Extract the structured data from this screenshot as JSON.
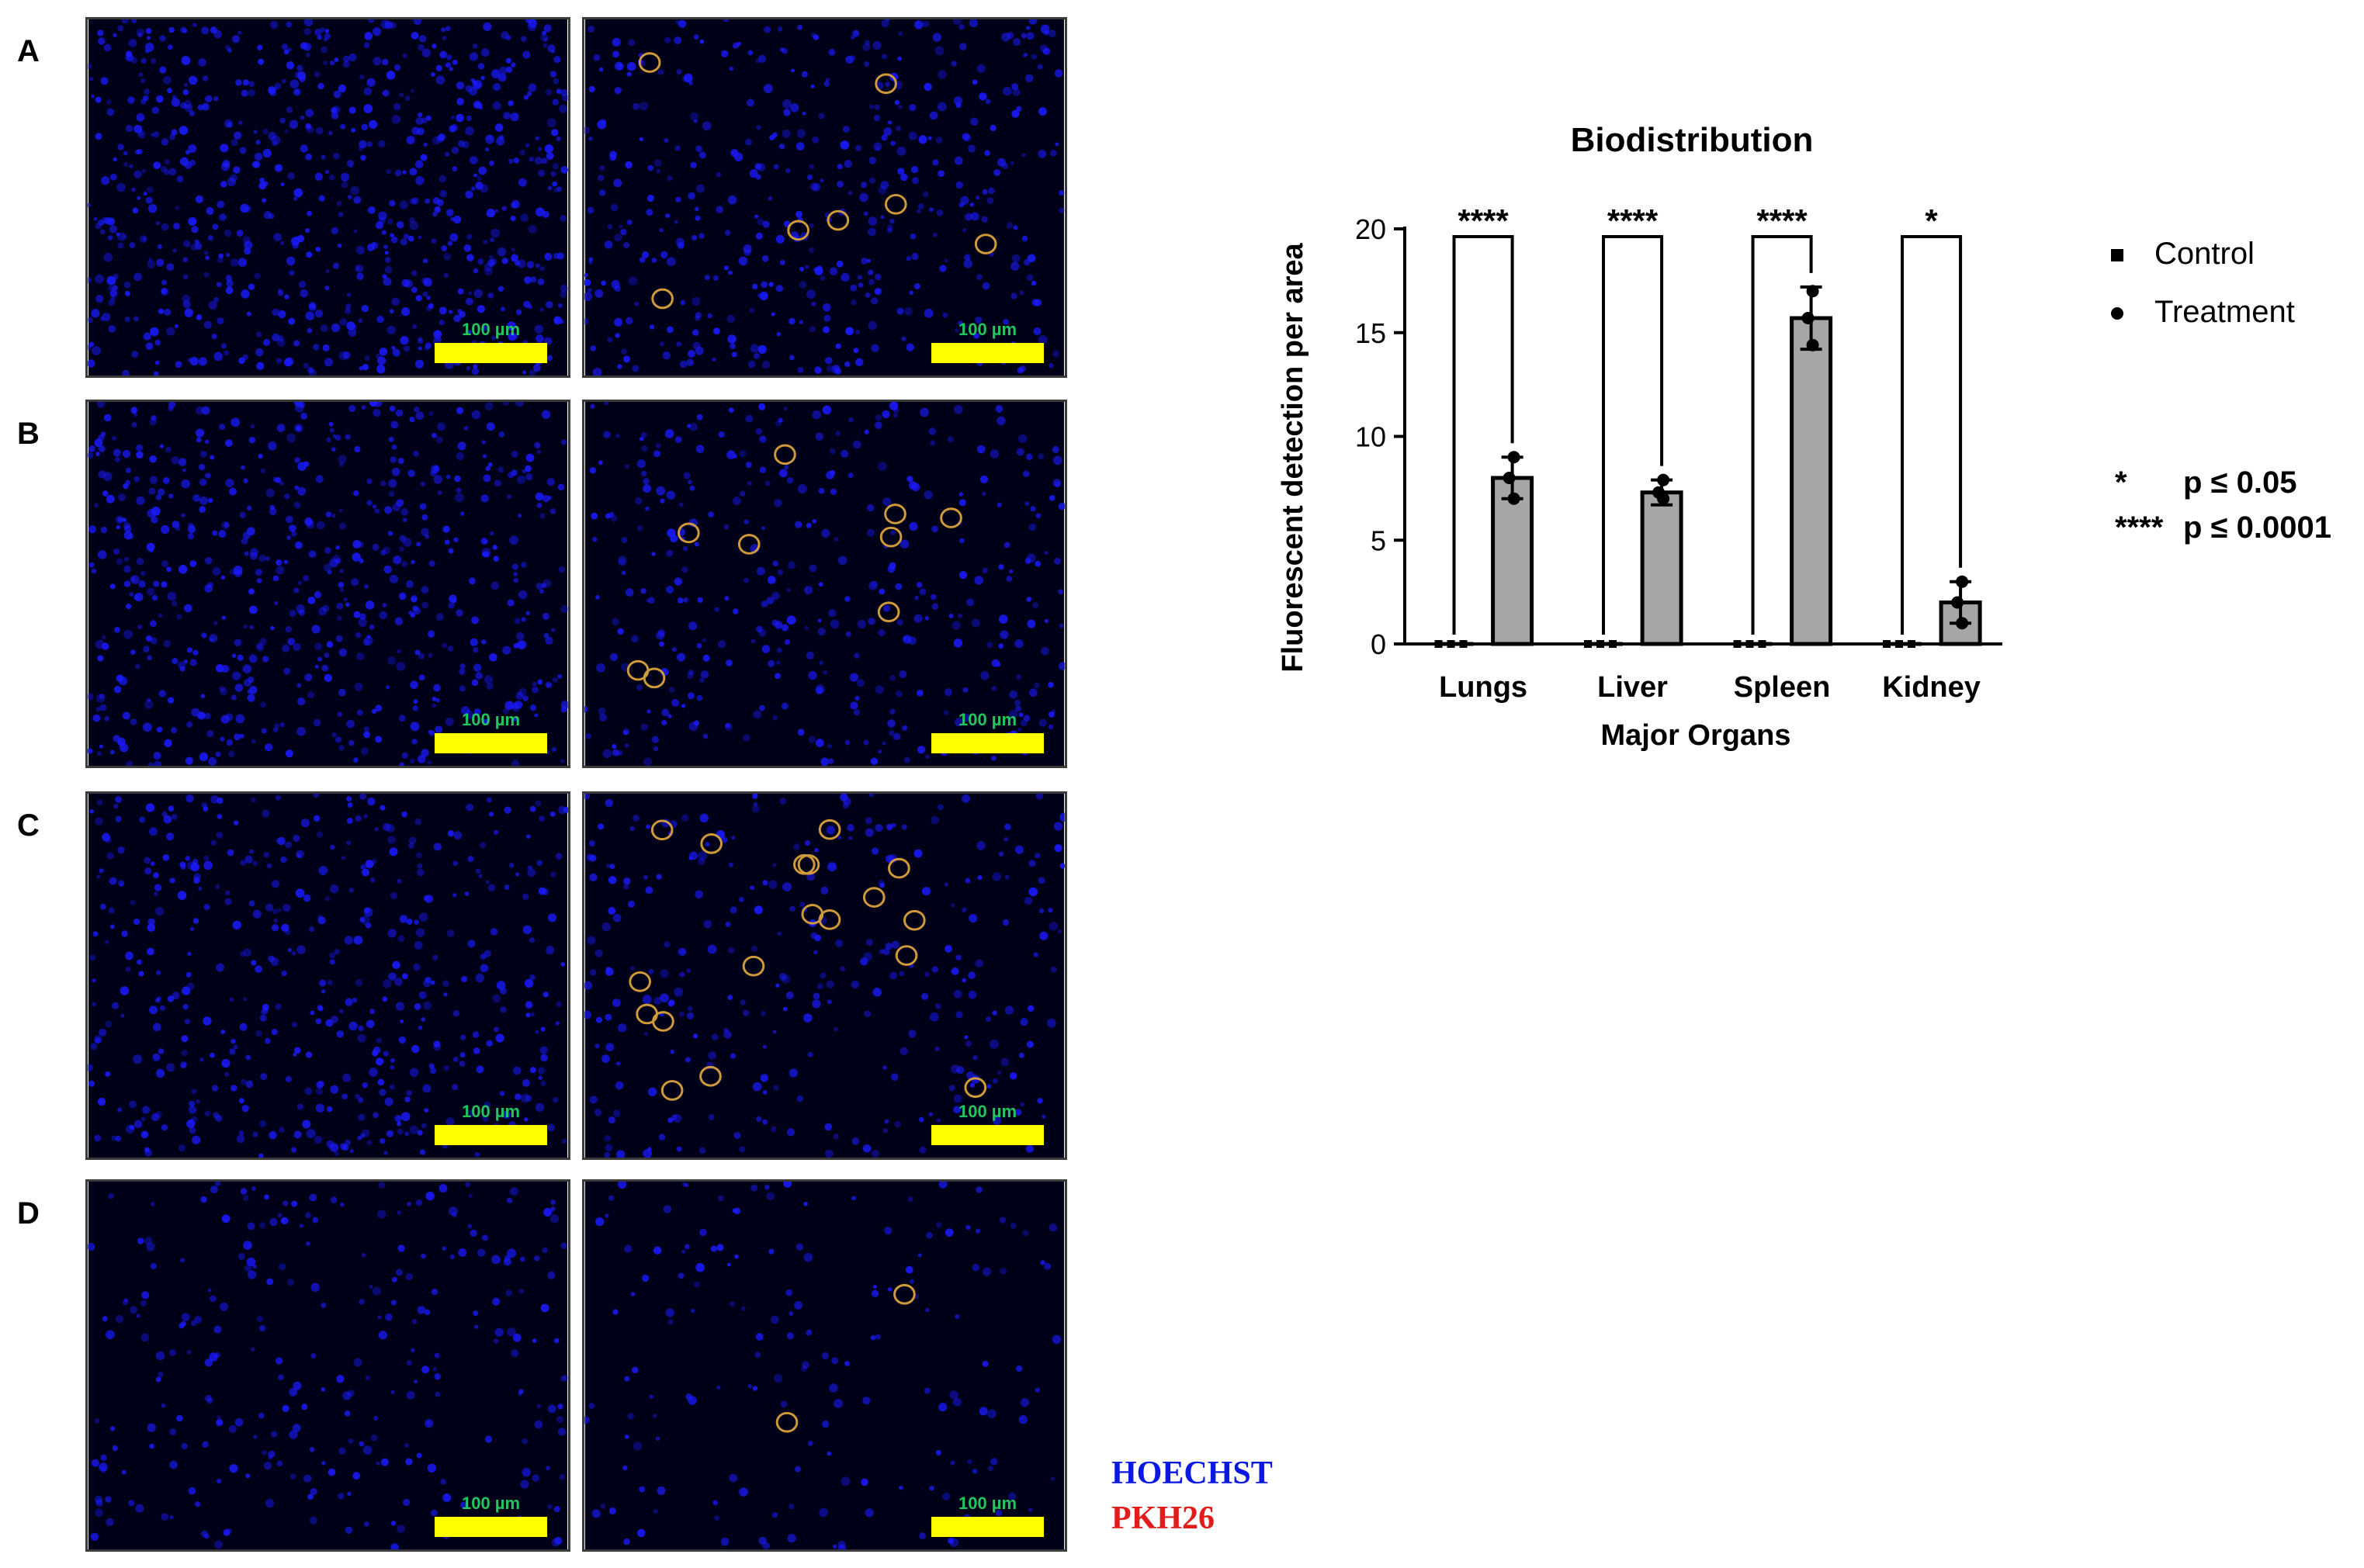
{
  "panels": {
    "rows": [
      {
        "label": "A",
        "scale_text": "100 µm",
        "control_density": 0.85,
        "treated_circles": 7
      },
      {
        "label": "B",
        "scale_text": "100 µm",
        "control_density": 0.7,
        "treated_circles": 9
      },
      {
        "label": "C",
        "scale_text": "100 µm",
        "control_density": 0.55,
        "treated_circles": 18
      },
      {
        "label": "D",
        "scale_text": "100 µm",
        "control_density": 0.3,
        "treated_circles": 2
      }
    ],
    "colors": {
      "nuclei": "#1a1aff",
      "background": "#000018",
      "circle": "#d09a3a"
    }
  },
  "stains": [
    {
      "name": "HOECHST",
      "color": "#0a18e0"
    },
    {
      "name": "PKH26",
      "color": "#e21b1b"
    }
  ],
  "legend": {
    "items": [
      {
        "label": "Control",
        "marker": "square"
      },
      {
        "label": "Treatment",
        "marker": "circle"
      }
    ]
  },
  "significance": {
    "lines": [
      {
        "stars": "*",
        "text": "p ≤ 0.05"
      },
      {
        "stars": "****",
        "text": "p ≤ 0.0001"
      }
    ]
  },
  "chart_data": {
    "type": "bar",
    "title": "Biodistribution",
    "xlabel": "Major Organs",
    "ylabel": "Fluorescent detection per area",
    "categories": [
      "Lungs",
      "Liver",
      "Spleen",
      "Kidney"
    ],
    "ylim": [
      0,
      20
    ],
    "yticks": [
      0,
      5,
      10,
      15,
      20
    ],
    "series": [
      {
        "name": "Control",
        "values": [
          0,
          0,
          0,
          0
        ],
        "points": [
          [
            0,
            0,
            0
          ],
          [
            0,
            0,
            0
          ],
          [
            0,
            0,
            0
          ],
          [
            0,
            0,
            0
          ]
        ]
      },
      {
        "name": "Treatment",
        "values": [
          8.0,
          7.3,
          15.7,
          2.0
        ],
        "errors": [
          1.0,
          0.6,
          1.5,
          1.0
        ],
        "points": [
          [
            9.0,
            8.0,
            7.0
          ],
          [
            7.9,
            7.3,
            7.0
          ],
          [
            17.0,
            15.7,
            14.4
          ],
          [
            3.0,
            2.0,
            1.0
          ]
        ]
      }
    ],
    "significance": [
      "****",
      "****",
      "****",
      "*"
    ],
    "bar_color": "#a6a6a6"
  }
}
